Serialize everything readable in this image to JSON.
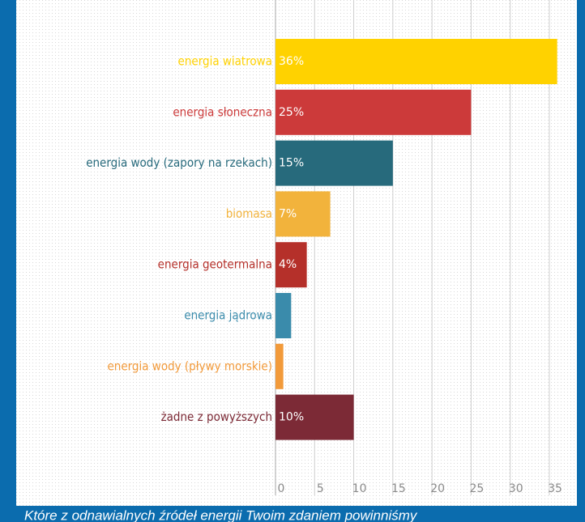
{
  "chart_data": {
    "type": "bar",
    "orientation": "horizontal",
    "categories": [
      "energia wiatrowa",
      "energia słoneczna",
      "energia wody (zapory na rzekach)",
      "biomasa",
      "energia geotermalna",
      "energia jądrowa",
      "energia wody (pływy morskie)",
      "żadne z powyższych"
    ],
    "values": [
      36,
      25,
      15,
      7,
      4,
      2,
      1,
      10
    ],
    "value_labels": [
      "36%",
      "25%",
      "15%",
      "7%",
      "4%",
      null,
      null,
      "10%"
    ],
    "colors": [
      "#ffd200",
      "#cc3a3a",
      "#276a7c",
      "#f2b33c",
      "#b5302a",
      "#3a8bab",
      "#f29a3a",
      "#7c2a36"
    ],
    "xlim": [
      0,
      35
    ],
    "xticks": [
      0,
      5,
      10,
      15,
      20,
      25,
      30,
      35
    ],
    "grid": true,
    "caption": "Które z odnawialnych źródeł energii Twoim zdaniem powinniśmy"
  }
}
